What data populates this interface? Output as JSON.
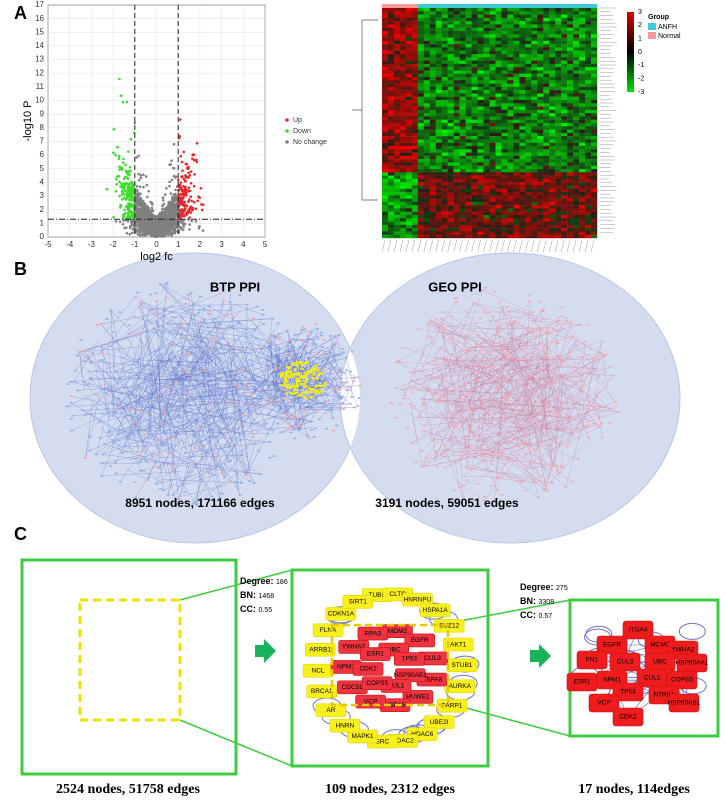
{
  "panels": {
    "a": {
      "label": "A"
    },
    "b": {
      "label": "B"
    },
    "c": {
      "label": "C"
    }
  },
  "chart_data": {
    "type": "scatter",
    "x_label": "log2 fc",
    "y_label": "-log10 P",
    "xlim": [
      -5,
      5
    ],
    "ylim": [
      0,
      17
    ],
    "xticks": [
      -5,
      -4,
      -3,
      -2,
      -1,
      0,
      1,
      2,
      3,
      4,
      5
    ],
    "yticks": [
      0,
      1,
      2,
      3,
      4,
      5,
      6,
      7,
      8,
      9,
      10,
      11,
      12,
      13,
      14,
      15,
      16,
      17
    ],
    "thresholds": {
      "x": [
        -1,
        1
      ],
      "y": 1.3
    },
    "series": [
      {
        "name": "Up",
        "color": "#e8262b"
      },
      {
        "name": "Down",
        "color": "#3ddc2e"
      },
      {
        "name": "No change",
        "color": "#808080"
      }
    ]
  },
  "heatmap": {
    "scale_ticks": [
      3,
      2,
      1,
      0,
      -1,
      -2,
      -3
    ],
    "group_title": "Group",
    "groups": [
      {
        "name": "ANFH",
        "color": "#3fc8d8"
      },
      {
        "name": "Normal",
        "color": "#f49a9a"
      }
    ]
  },
  "venn": {
    "left_title": "BTP PPI",
    "right_title": "GEO PPI",
    "left_caption": "8951 nodes, 171166 edges",
    "right_caption": "3191 nodes, 59051 edges"
  },
  "network_steps": {
    "captions": [
      "2524 nodes, 51758 edges",
      "109 nodes, 2312 edges",
      "17 nodes, 114edges"
    ],
    "filters": [
      [
        {
          "label": "Degree:",
          "value": 186
        },
        {
          "label": "BN:",
          "value": 1468
        },
        {
          "label": "CC:",
          "value": 0.55
        }
      ],
      [
        {
          "label": "Degree:",
          "value": 275
        },
        {
          "label": "BN:",
          "value": 3308
        },
        {
          "label": "CC:",
          "value": 0.57
        }
      ]
    ],
    "middle_outer_nodes": [
      "TUBB",
      "CLTC",
      "HNRNPU",
      "HSPA1A",
      "SUZ12",
      "AKT1",
      "STUB1",
      "AURKA",
      "PARP1",
      "UBE2I",
      "HDAC6",
      "HDAC2",
      "SRC",
      "MAPK1",
      "HNRN",
      "AR",
      "BRCA1",
      "NCL",
      "ARRB1",
      "FLNA",
      "CDKN1A",
      "SIRT1"
    ],
    "middle_inner_nodes": [
      "MDM2",
      "EGFR",
      "CUL3",
      "HSPA8",
      "HUWE1",
      "HSPA5",
      "VCP",
      "CDC5L",
      "NPM1",
      "YWHAZ",
      "RPA3",
      "UBC",
      "TP53",
      "HSP90AB1",
      "CUL1",
      "COPS5",
      "CDK2",
      "ESR1"
    ],
    "final_nodes": [
      "ITGA4",
      "EGFR",
      "MCM2",
      "YWHAZ",
      "FN1",
      "CUL3",
      "UBC",
      "HSP90AA1",
      "ESR1",
      "NPM1",
      "CUL1",
      "COPS5",
      "TP53",
      "NTRK1",
      "VCP",
      "CDK2",
      "HSP90AB1"
    ]
  }
}
